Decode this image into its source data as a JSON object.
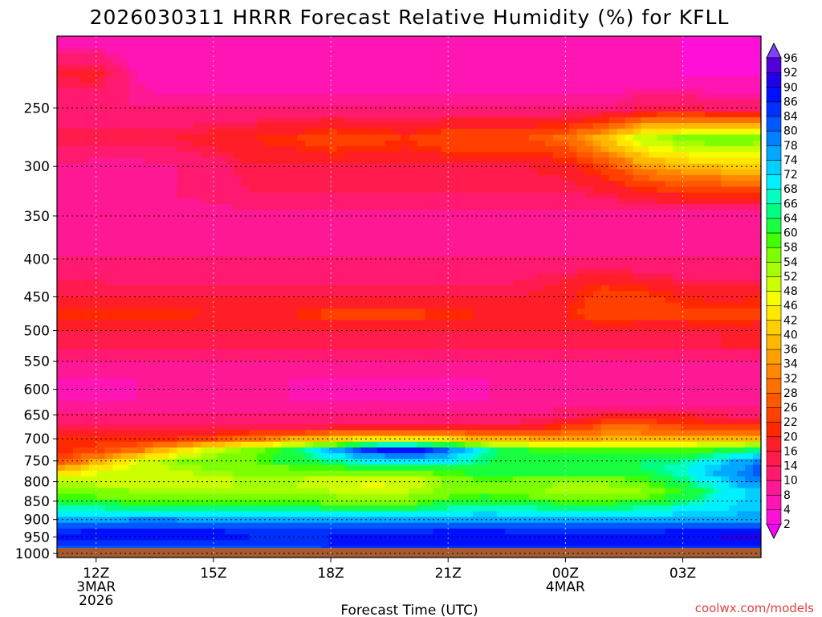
{
  "chart_data": {
    "type": "heatmap",
    "title": "2026030311 HRRR Forecast Relative Humidity (%) for KFLL",
    "xlabel": "Forecast Time (UTC)",
    "ylabel": "",
    "x_ticks": [
      {
        "hour": 12,
        "label": "12Z",
        "sub": [
          "3MAR",
          "2026"
        ]
      },
      {
        "hour": 15,
        "label": "15Z",
        "sub": []
      },
      {
        "hour": 18,
        "label": "18Z",
        "sub": []
      },
      {
        "hour": 21,
        "label": "21Z",
        "sub": []
      },
      {
        "hour": 24,
        "label": "00Z",
        "sub": [
          "4MAR"
        ]
      },
      {
        "hour": 27,
        "label": "03Z",
        "sub": []
      }
    ],
    "xlim": [
      11,
      29
    ],
    "y_ticks": [
      250,
      300,
      350,
      400,
      450,
      500,
      550,
      600,
      650,
      700,
      750,
      800,
      850,
      900,
      950,
      1000
    ],
    "ylim": [
      1013,
      200
    ],
    "y_scale": "log",
    "grid": true,
    "colorbar": {
      "position": "right",
      "levels": [
        2,
        4,
        8,
        10,
        14,
        16,
        20,
        22,
        26,
        28,
        32,
        34,
        36,
        40,
        42,
        46,
        48,
        52,
        54,
        58,
        60,
        64,
        66,
        68,
        72,
        74,
        78,
        80,
        84,
        86,
        90,
        92,
        96
      ],
      "colors": [
        "#ff00ff",
        "#ff10d8",
        "#ff14b4",
        "#ff1894",
        "#ff1a70",
        "#ff1c4c",
        "#ff1e28",
        "#ff2800",
        "#ff4000",
        "#ff5800",
        "#ff7000",
        "#ff8800",
        "#ffa000",
        "#ffb800",
        "#ffd000",
        "#ffe800",
        "#f4ff00",
        "#ccff00",
        "#a4ff00",
        "#7cff00",
        "#40ff00",
        "#18ff40",
        "#00ff80",
        "#00ffc0",
        "#00f0ff",
        "#00d0ff",
        "#00a8ff",
        "#0080ff",
        "#0058ff",
        "#0030ff",
        "#0010ff",
        "#2000e8",
        "#5000d8",
        "#8040ff"
      ]
    },
    "pressure_levels": [
      200,
      225,
      250,
      275,
      300,
      325,
      350,
      375,
      400,
      425,
      450,
      475,
      500,
      525,
      550,
      575,
      600,
      625,
      650,
      675,
      700,
      725,
      750,
      775,
      800,
      825,
      850,
      875,
      900,
      925,
      950,
      975,
      1000,
      1013
    ],
    "forecast_hours": [
      11,
      12,
      13,
      14,
      15,
      16,
      17,
      18,
      19,
      20,
      21,
      22,
      23,
      24,
      25,
      26,
      27,
      28,
      29
    ],
    "rh": [
      [
        4,
        4,
        4,
        4,
        4,
        4,
        4,
        4,
        4,
        4,
        4,
        4,
        4,
        4,
        4,
        4,
        4,
        4,
        4
      ],
      [
        16,
        18,
        8,
        4,
        4,
        4,
        4,
        4,
        4,
        4,
        4,
        4,
        4,
        4,
        4,
        4,
        4,
        3,
        4
      ],
      [
        10,
        10,
        10,
        10,
        10,
        10,
        10,
        10,
        10,
        10,
        10,
        10,
        10,
        10,
        10,
        14,
        14,
        12,
        12
      ],
      [
        16,
        16,
        16,
        16,
        18,
        20,
        22,
        26,
        24,
        22,
        26,
        26,
        26,
        30,
        40,
        52,
        56,
        58,
        56
      ],
      [
        10,
        8,
        8,
        10,
        12,
        16,
        16,
        16,
        16,
        16,
        16,
        16,
        16,
        18,
        24,
        34,
        38,
        40,
        42
      ],
      [
        10,
        10,
        10,
        10,
        12,
        14,
        14,
        14,
        14,
        14,
        14,
        14,
        14,
        14,
        16,
        20,
        22,
        22,
        22
      ],
      [
        8,
        8,
        8,
        8,
        8,
        8,
        8,
        8,
        8,
        8,
        8,
        8,
        8,
        8,
        8,
        8,
        8,
        8,
        8
      ],
      [
        8,
        8,
        8,
        8,
        8,
        8,
        8,
        8,
        8,
        8,
        8,
        8,
        8,
        8,
        8,
        8,
        8,
        8,
        8
      ],
      [
        10,
        10,
        10,
        10,
        10,
        10,
        10,
        10,
        10,
        10,
        10,
        10,
        10,
        10,
        10,
        10,
        10,
        10,
        10
      ],
      [
        14,
        14,
        12,
        12,
        12,
        12,
        12,
        12,
        12,
        12,
        12,
        12,
        14,
        16,
        18,
        16,
        14,
        14,
        14
      ],
      [
        16,
        16,
        16,
        16,
        16,
        16,
        16,
        16,
        16,
        16,
        16,
        16,
        16,
        18,
        26,
        24,
        20,
        18,
        20
      ],
      [
        22,
        22,
        22,
        22,
        20,
        18,
        20,
        24,
        24,
        24,
        22,
        20,
        18,
        20,
        26,
        24,
        24,
        26,
        24
      ],
      [
        16,
        16,
        16,
        16,
        16,
        16,
        16,
        16,
        16,
        16,
        16,
        16,
        16,
        16,
        16,
        16,
        16,
        16,
        16
      ],
      [
        14,
        14,
        14,
        14,
        14,
        14,
        14,
        14,
        14,
        14,
        14,
        14,
        14,
        14,
        14,
        14,
        14,
        16,
        16
      ],
      [
        10,
        10,
        10,
        10,
        10,
        10,
        10,
        10,
        10,
        10,
        10,
        10,
        10,
        10,
        10,
        10,
        10,
        10,
        10
      ],
      [
        8,
        8,
        8,
        8,
        8,
        8,
        8,
        8,
        8,
        8,
        8,
        8,
        8,
        8,
        8,
        8,
        8,
        8,
        8
      ],
      [
        4,
        3,
        8,
        8,
        8,
        8,
        8,
        6,
        6,
        6,
        5,
        8,
        8,
        8,
        8,
        8,
        8,
        8,
        8
      ],
      [
        8,
        8,
        8,
        8,
        8,
        8,
        8,
        8,
        8,
        8,
        8,
        8,
        8,
        8,
        8,
        8,
        8,
        8,
        8
      ],
      [
        10,
        10,
        10,
        10,
        10,
        10,
        10,
        10,
        10,
        10,
        10,
        10,
        10,
        12,
        16,
        16,
        16,
        14,
        12
      ],
      [
        14,
        14,
        14,
        14,
        14,
        14,
        14,
        16,
        16,
        16,
        16,
        16,
        18,
        22,
        28,
        28,
        26,
        24,
        22
      ],
      [
        20,
        20,
        20,
        22,
        26,
        30,
        36,
        40,
        44,
        44,
        42,
        38,
        36,
        34,
        36,
        36,
        36,
        38,
        40
      ],
      [
        20,
        24,
        30,
        40,
        50,
        56,
        62,
        74,
        86,
        90,
        80,
        66,
        60,
        58,
        58,
        58,
        58,
        60,
        66
      ],
      [
        24,
        36,
        48,
        54,
        56,
        58,
        62,
        66,
        70,
        72,
        70,
        64,
        64,
        64,
        64,
        64,
        66,
        72,
        80
      ],
      [
        40,
        48,
        50,
        52,
        54,
        56,
        56,
        56,
        56,
        58,
        60,
        62,
        62,
        62,
        62,
        64,
        68,
        76,
        82
      ],
      [
        52,
        50,
        48,
        48,
        50,
        52,
        52,
        48,
        46,
        48,
        54,
        58,
        56,
        54,
        54,
        58,
        64,
        72,
        80
      ],
      [
        58,
        56,
        54,
        54,
        54,
        54,
        54,
        52,
        50,
        52,
        56,
        58,
        56,
        52,
        52,
        54,
        60,
        68,
        74
      ],
      [
        62,
        60,
        58,
        58,
        58,
        58,
        58,
        56,
        54,
        56,
        60,
        62,
        60,
        58,
        58,
        60,
        64,
        70,
        74
      ],
      [
        68,
        68,
        68,
        68,
        68,
        68,
        68,
        66,
        64,
        66,
        68,
        70,
        68,
        68,
        68,
        68,
        70,
        72,
        74
      ],
      [
        74,
        76,
        78,
        78,
        76,
        74,
        74,
        74,
        74,
        74,
        76,
        76,
        76,
        76,
        76,
        76,
        76,
        76,
        76
      ],
      [
        84,
        86,
        86,
        86,
        86,
        84,
        84,
        84,
        84,
        84,
        86,
        86,
        84,
        84,
        84,
        84,
        86,
        86,
        86
      ],
      [
        86,
        88,
        90,
        90,
        88,
        86,
        86,
        86,
        86,
        86,
        88,
        88,
        86,
        86,
        86,
        86,
        88,
        90,
        92
      ],
      [
        84,
        84,
        84,
        84,
        84,
        84,
        84,
        86,
        86,
        88,
        88,
        88,
        86,
        88,
        88,
        86,
        86,
        88,
        88
      ],
      [
        82,
        82,
        82,
        82,
        82,
        82,
        82,
        82,
        82,
        82,
        82,
        82,
        82,
        82,
        82,
        82,
        82,
        82,
        82
      ],
      [
        82,
        82,
        82,
        82,
        82,
        82,
        82,
        82,
        82,
        82,
        82,
        82,
        82,
        82,
        82,
        82,
        82,
        82,
        82
      ]
    ]
  },
  "branding": {
    "credit": "coolwx.com/models"
  },
  "colors": {
    "ground": "#a65a32",
    "frame": "#000000"
  }
}
